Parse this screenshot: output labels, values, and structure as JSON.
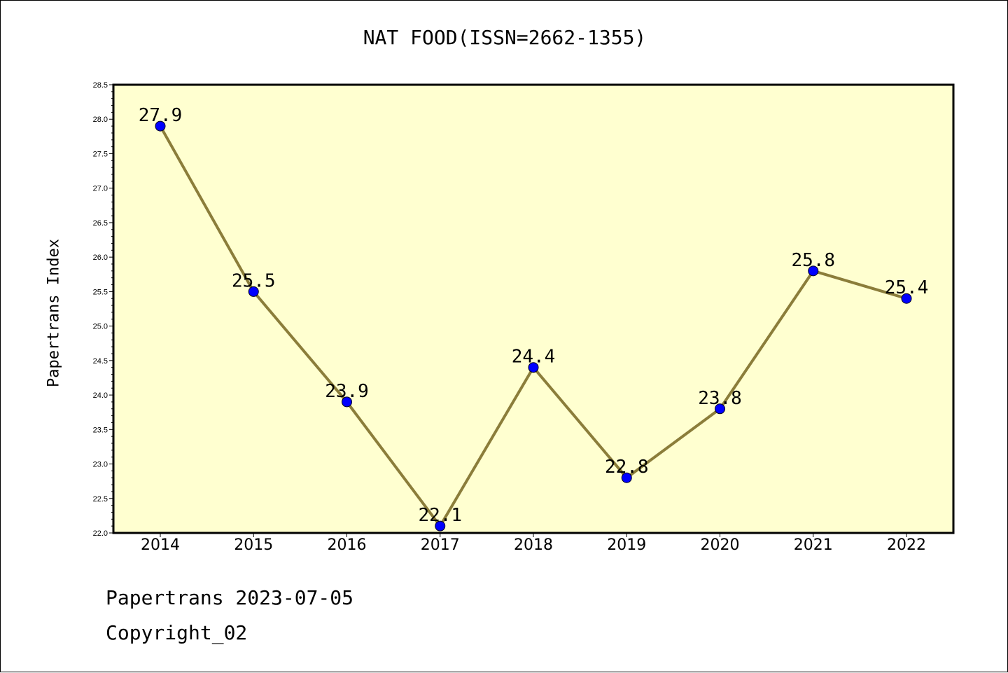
{
  "page": {
    "title": "NAT FOOD(ISSN=2662-1355)",
    "footer_date": "Papertrans 2023-07-05",
    "footer_copyright": "Copyright_02"
  },
  "chart_data": {
    "type": "line",
    "title": "NAT FOOD(ISSN=2662-1355)",
    "xlabel": "",
    "ylabel": "Papertrans Index",
    "categories": [
      "2014",
      "2015",
      "2016",
      "2017",
      "2018",
      "2019",
      "2020",
      "2021",
      "2022"
    ],
    "series": [
      {
        "values": [
          27.9,
          25.5,
          23.9,
          22.1,
          24.4,
          22.8,
          23.8,
          25.8,
          25.4
        ],
        "labels": [
          "27.9",
          "25.5",
          "23.9",
          "22.1",
          "24.4",
          "22.8",
          "23.8",
          "25.8",
          "25.4"
        ],
        "line_color": "#8B7D3A",
        "marker_color": "#0000FF"
      }
    ],
    "ylim": [
      22.0,
      28.5
    ],
    "yticks": [
      "22.0",
      "22.5",
      "23.0",
      "23.5",
      "24.0",
      "24.5",
      "25.0",
      "25.5",
      "26.0",
      "26.5",
      "27.0",
      "27.5",
      "28.0",
      "28.5"
    ],
    "plot_background": "#FFFFD0",
    "grid": false,
    "legend": "none"
  }
}
